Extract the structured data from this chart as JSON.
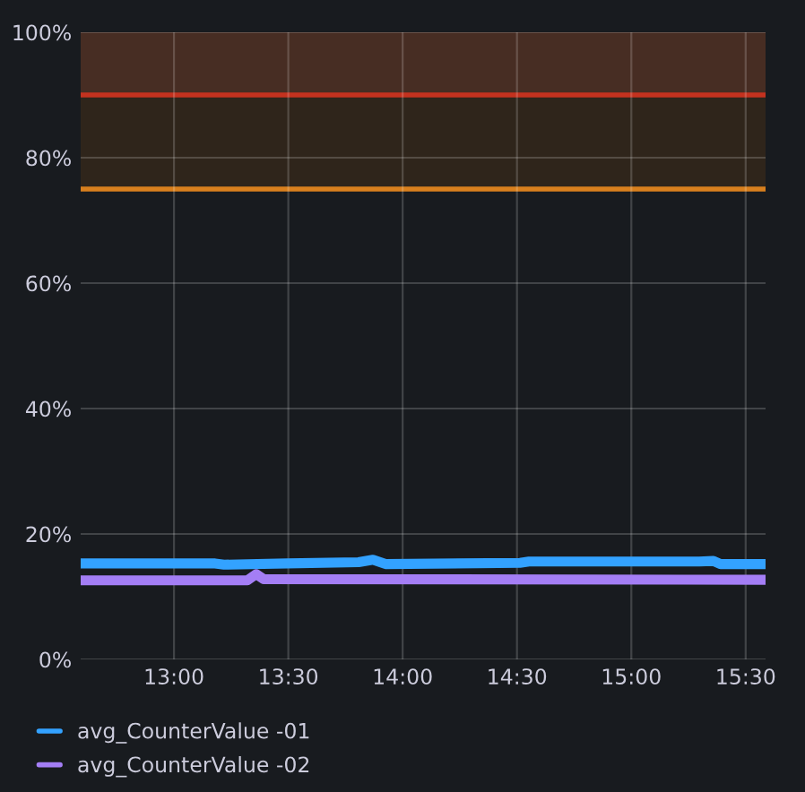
{
  "chart_data": {
    "type": "line",
    "x": [
      12.592,
      13.18,
      13.219,
      13.494,
      13.807,
      13.87,
      13.925,
      14.513,
      14.552,
      15.296,
      15.359,
      15.39,
      15.586
    ],
    "series": [
      {
        "name": "avg_CounterValue -01",
        "color": "#33a2ff",
        "values": [
          15.3,
          15.3,
          15.1,
          15.3,
          15.5,
          15.9,
          15.2,
          15.4,
          15.6,
          15.6,
          15.7,
          15.2,
          15.2
        ]
      },
      {
        "name": "avg_CounterValue -02",
        "color": "#a47ef5",
        "x": [
          12.592,
          13.321,
          13.36,
          13.392,
          15.586
        ],
        "values": [
          12.6,
          12.6,
          13.6,
          12.8,
          12.7
        ]
      }
    ],
    "xlim": [
      12.592,
      15.587
    ],
    "xticks": [
      {
        "value": 13,
        "label": "13:00"
      },
      {
        "value": 13.5,
        "label": "13:30"
      },
      {
        "value": 14,
        "label": "14:00"
      },
      {
        "value": 14.5,
        "label": "14:30"
      },
      {
        "value": 15,
        "label": "15:00"
      },
      {
        "value": 15.5,
        "label": "15:30"
      }
    ],
    "ylim": [
      0,
      100
    ],
    "yticks": [
      {
        "value": 0,
        "label": "0%"
      },
      {
        "value": 20,
        "label": "20%"
      },
      {
        "value": 40,
        "label": "40%"
      },
      {
        "value": 60,
        "label": "60%"
      },
      {
        "value": 80,
        "label": "80%"
      },
      {
        "value": 100,
        "label": "100%"
      }
    ],
    "bands": [
      {
        "axis": "y",
        "from": 75,
        "to": 90,
        "color": "#2f251b"
      },
      {
        "axis": "y",
        "from": 90,
        "to": 100,
        "color": "#472d23"
      }
    ],
    "ref_lines": [
      {
        "axis": "y",
        "value": 90,
        "color": "#c4321f"
      },
      {
        "axis": "y",
        "value": 75,
        "color": "#d9801e"
      }
    ],
    "grid": true,
    "legend": "bottom",
    "line_style": "solid",
    "marker": "none"
  }
}
